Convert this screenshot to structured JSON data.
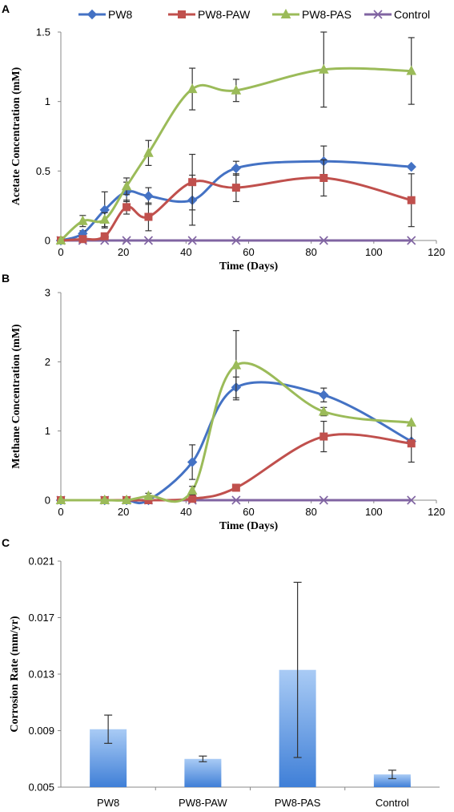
{
  "chart_data": [
    {
      "panel": "A",
      "type": "line",
      "xlabel": "Time (Days)",
      "ylabel": "Acetate Concentration (mM)",
      "xlim": [
        0,
        120
      ],
      "ylim": [
        0,
        1.5
      ],
      "xticks": [
        0,
        20,
        40,
        60,
        80,
        100,
        120
      ],
      "yticks": [
        0,
        0.5,
        1,
        1.5
      ],
      "ytick_labels": [
        "0",
        "0.5",
        "1",
        "1.5"
      ],
      "legend": "top",
      "grid": false,
      "series": [
        {
          "name": "PW8",
          "color": "#4472C4",
          "marker": "diamond",
          "x": [
            0,
            7,
            14,
            21,
            28,
            42,
            56,
            84,
            112
          ],
          "y": [
            0,
            0.05,
            0.22,
            0.35,
            0.32,
            0.29,
            0.52,
            0.57,
            0.53
          ],
          "err": [
            0,
            0.02,
            0.13,
            0.07,
            0.06,
            0.18,
            0.05,
            0.11,
            0
          ]
        },
        {
          "name": "PW8-PAW",
          "color": "#C0504D",
          "marker": "square",
          "x": [
            0,
            7,
            14,
            21,
            28,
            42,
            56,
            84,
            112
          ],
          "y": [
            0,
            0.01,
            0.03,
            0.24,
            0.17,
            0.42,
            0.38,
            0.45,
            0.29
          ],
          "err": [
            0,
            0.01,
            0.02,
            0.05,
            0.1,
            0.2,
            0.1,
            0.13,
            0.19
          ]
        },
        {
          "name": "PW8-PAS",
          "color": "#9BBB59",
          "marker": "triangle",
          "x": [
            0,
            7,
            14,
            21,
            28,
            42,
            56,
            84,
            112
          ],
          "y": [
            0,
            0.14,
            0.15,
            0.39,
            0.63,
            1.09,
            1.08,
            1.23,
            1.22
          ],
          "err": [
            0,
            0.04,
            0.05,
            0.06,
            0.09,
            0.15,
            0.08,
            0.27,
            0.24
          ]
        },
        {
          "name": "Control",
          "color": "#8064A2",
          "marker": "x",
          "x": [
            0,
            7,
            14,
            21,
            28,
            42,
            56,
            84,
            112
          ],
          "y": [
            0,
            0,
            0,
            0,
            0,
            0,
            0,
            0,
            0
          ],
          "err": [
            0,
            0,
            0,
            0,
            0,
            0,
            0,
            0,
            0
          ]
        }
      ]
    },
    {
      "panel": "B",
      "type": "line",
      "xlabel": "Time (Days)",
      "ylabel": "Methane Concentration (mM)",
      "xlim": [
        0,
        120
      ],
      "ylim": [
        0,
        3
      ],
      "xticks": [
        0,
        20,
        40,
        60,
        80,
        100,
        120
      ],
      "yticks": [
        0,
        1,
        2,
        3
      ],
      "ytick_labels": [
        "0",
        "1",
        "2",
        "3"
      ],
      "grid": false,
      "series": [
        {
          "name": "PW8",
          "color": "#4472C4",
          "marker": "diamond",
          "x": [
            0,
            14,
            21,
            28,
            42,
            56,
            84,
            112
          ],
          "y": [
            0,
            0,
            0,
            0,
            0.55,
            1.63,
            1.52,
            0.85
          ],
          "err": [
            0,
            0,
            0,
            0,
            0.25,
            0.15,
            0.1,
            0
          ]
        },
        {
          "name": "PW8-PAW",
          "color": "#C0504D",
          "marker": "square",
          "x": [
            0,
            14,
            21,
            28,
            42,
            56,
            84,
            112
          ],
          "y": [
            0,
            0,
            0,
            0,
            0.02,
            0.18,
            0.92,
            0.82
          ],
          "err": [
            0,
            0,
            0,
            0,
            0,
            0,
            0.22,
            0.27
          ]
        },
        {
          "name": "PW8-PAS",
          "color": "#9BBB59",
          "marker": "triangle",
          "x": [
            0,
            14,
            21,
            28,
            42,
            56,
            84,
            112
          ],
          "y": [
            0,
            0,
            0,
            0.06,
            0.14,
            1.95,
            1.28,
            1.12
          ],
          "err": [
            0,
            0,
            0,
            0.04,
            0.06,
            0.5,
            0.06,
            0
          ]
        },
        {
          "name": "Control",
          "color": "#8064A2",
          "marker": "x",
          "x": [
            0,
            14,
            21,
            28,
            42,
            56,
            84,
            112
          ],
          "y": [
            0,
            0,
            0,
            0,
            0,
            0,
            0,
            0
          ],
          "err": [
            0,
            0,
            0,
            0,
            0,
            0,
            0,
            0
          ]
        }
      ]
    },
    {
      "panel": "C",
      "type": "bar",
      "ylabel": "Corrosion Rate (mm/yr)",
      "categories": [
        "PW8",
        "PW8-PAW",
        "PW8-PAS",
        "Control"
      ],
      "values": [
        0.0091,
        0.007,
        0.0133,
        0.0059
      ],
      "err": [
        0.001,
        0.0002,
        0.0062,
        0.0003
      ],
      "ylim": [
        0.005,
        0.021
      ],
      "yticks": [
        0.005,
        0.009,
        0.013,
        0.017,
        0.021
      ],
      "ytick_labels": [
        "0.005",
        "0.009",
        "0.013",
        "0.017",
        "0.021"
      ],
      "bar_color": "#6A9FE5",
      "grid": false
    }
  ]
}
